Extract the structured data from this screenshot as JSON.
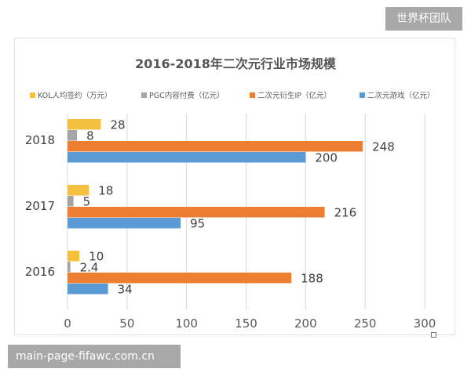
{
  "watermark_top": "世界杯团队",
  "watermark_bottom": "main-page-fifawc.com.cn",
  "chart_data": {
    "type": "bar",
    "orientation": "horizontal",
    "title": "2016-2018年二次元行业市场规模",
    "categories": [
      "2016",
      "2017",
      "2018"
    ],
    "series": [
      {
        "name": "KOL人均签约（万元）",
        "color": "#f4c040",
        "values": [
          10,
          18,
          28
        ],
        "labels": [
          "10",
          "18",
          "28"
        ]
      },
      {
        "name": "PGC内容付费（亿元）",
        "color": "#a5a5a5",
        "values": [
          2.4,
          5,
          8
        ],
        "labels": [
          "2.4",
          "5",
          "8"
        ]
      },
      {
        "name": "二次元衍生IP（亿元）",
        "color": "#ed7d31",
        "values": [
          188,
          216,
          248
        ],
        "labels": [
          "188",
          "216",
          "248"
        ]
      },
      {
        "name": "二次元游戏（亿元）",
        "color": "#5b9bd5",
        "values": [
          34,
          95,
          200
        ],
        "labels": [
          "34",
          "95",
          "200"
        ]
      }
    ],
    "xlim": [
      0,
      300
    ],
    "xticks": [
      "0",
      "50",
      "100",
      "150",
      "200",
      "250",
      "300"
    ],
    "grid": true,
    "legend": "top"
  }
}
